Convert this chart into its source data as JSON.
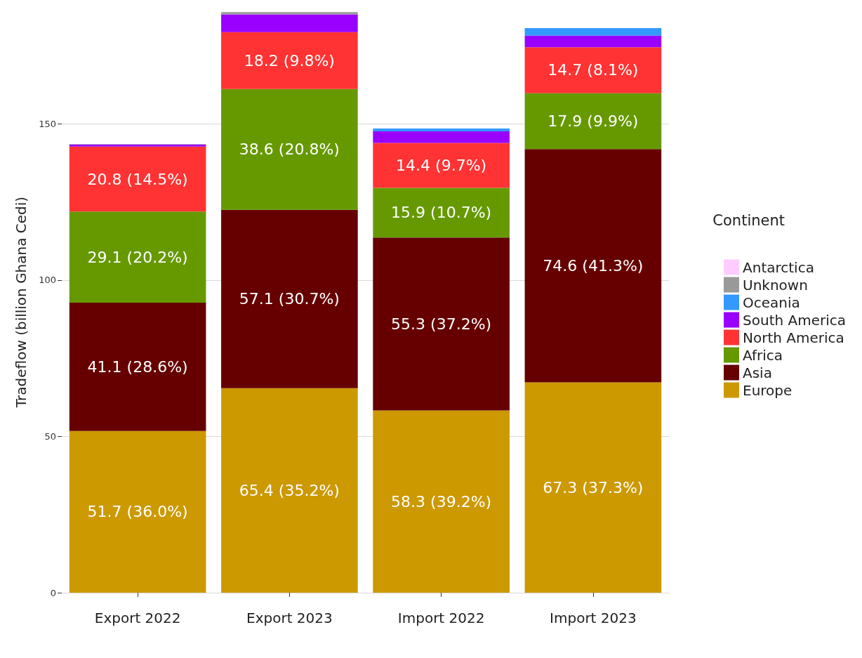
{
  "chart_data": {
    "type": "bar",
    "stacked": true,
    "ylabel": "Tradeflow (billion Ghana Cedi)",
    "legend_title": "Continent",
    "legend": "right",
    "grid": "y",
    "categories": [
      "Export 2022",
      "Export 2023",
      "Import 2022",
      "Import 2023"
    ],
    "ylim": [
      0,
      186
    ],
    "yticks": [
      0,
      50,
      100,
      150
    ],
    "series": [
      {
        "name": "Europe",
        "color": "#cc9900",
        "values": [
          51.7,
          65.4,
          58.3,
          67.3
        ],
        "value_labels": [
          "51.7 (36.0%)",
          "65.4 (35.2%)",
          "58.3 (39.2%)",
          "67.3 (37.3%)"
        ]
      },
      {
        "name": "Asia",
        "color": "#660000",
        "values": [
          41.1,
          57.1,
          55.3,
          74.6
        ],
        "value_labels": [
          "41.1 (28.6%)",
          "57.1 (30.7%)",
          "55.3 (37.2%)",
          "74.6 (41.3%)"
        ]
      },
      {
        "name": "Africa",
        "color": "#669900",
        "values": [
          29.1,
          38.6,
          15.9,
          17.9
        ],
        "value_labels": [
          "29.1 (20.2%)",
          "38.6 (20.8%)",
          "15.9 (10.7%)",
          "17.9 (9.9%)"
        ]
      },
      {
        "name": "North America",
        "color": "#ff3333",
        "values": [
          20.8,
          18.2,
          14.4,
          14.7
        ],
        "value_labels": [
          "20.8 (14.5%)",
          "18.2 (9.8%)",
          "14.4 (9.7%)",
          "14.7 (8.1%)"
        ]
      },
      {
        "name": "South America",
        "color": "#9900ff",
        "values": [
          0.6,
          5.7,
          3.7,
          3.7
        ]
      },
      {
        "name": "Oceania",
        "color": "#3399ff",
        "values": [
          null,
          null,
          0.9,
          2.4
        ]
      },
      {
        "name": "Unknown",
        "color": "#999999",
        "values": [
          0.2,
          0.7,
          null,
          null
        ]
      },
      {
        "name": "Antarctica",
        "color": "#ffccff",
        "values": [
          null,
          null,
          null,
          null
        ]
      }
    ]
  }
}
